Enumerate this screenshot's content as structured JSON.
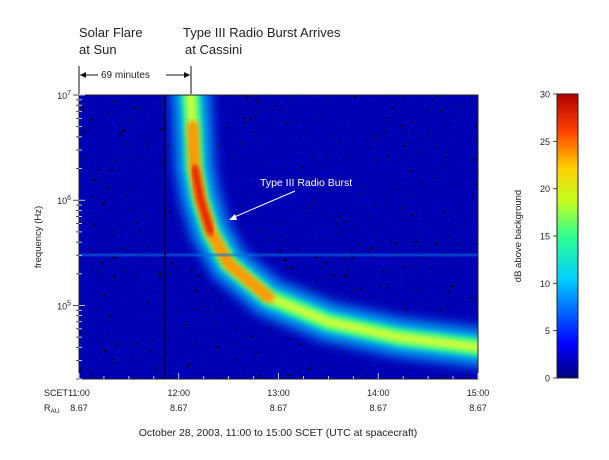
{
  "chart_data": [
    {
      "type": "heatmap",
      "title": "",
      "xlabel": "October 28, 2003, 11:00 to 15:00 SCET (UTC at spacecraft)",
      "ylabel": "frequency (Hz)",
      "y_scale": "log",
      "xlim": [
        "11:00",
        "15:00"
      ],
      "ylim": [
        20000,
        10000000
      ],
      "row_labels": {
        "scet": "SCET",
        "rau": "R"
      },
      "rau_subscript": "AU",
      "x_ticks": [
        {
          "t": "11:00",
          "r": "8.67",
          "h": 11.0
        },
        {
          "t": "12:00",
          "r": "8.67",
          "h": 12.0
        },
        {
          "t": "13:00",
          "r": "8.67",
          "h": 13.0
        },
        {
          "t": "14:00",
          "r": "8.67",
          "h": 14.0
        },
        {
          "t": "15:00",
          "r": "8.67",
          "h": 15.0
        }
      ],
      "y_ticks": [
        {
          "mant": "10",
          "exp": "5",
          "v": 100000
        },
        {
          "mant": "10",
          "exp": "6",
          "v": 1000000
        },
        {
          "mant": "10",
          "exp": "7",
          "v": 10000000
        }
      ],
      "colorbar": {
        "label": "dB above background",
        "range": [
          0,
          30
        ],
        "ticks": [
          "0",
          "5",
          "10",
          "15",
          "20",
          "25",
          "30"
        ]
      },
      "burst_ridge": [
        {
          "h": 12.12,
          "f": 10000000
        },
        {
          "h": 12.14,
          "f": 5000000
        },
        {
          "h": 12.16,
          "f": 2000000
        },
        {
          "h": 12.22,
          "f": 1000000
        },
        {
          "h": 12.32,
          "f": 500000
        },
        {
          "h": 12.5,
          "f": 250000
        },
        {
          "h": 12.9,
          "f": 120000
        },
        {
          "h": 13.5,
          "f": 70000
        },
        {
          "h": 14.2,
          "f": 50000
        },
        {
          "h": 15.0,
          "f": 40000
        }
      ],
      "annotations": {
        "flare_line1": "Solar Flare",
        "flare_line2": "at Sun",
        "arrive_line1": "Type III Radio Burst Arrives",
        "arrive_line2": "at Cassini",
        "delay": "69 minutes",
        "burst": "Type III Radio Burst"
      }
    }
  ]
}
